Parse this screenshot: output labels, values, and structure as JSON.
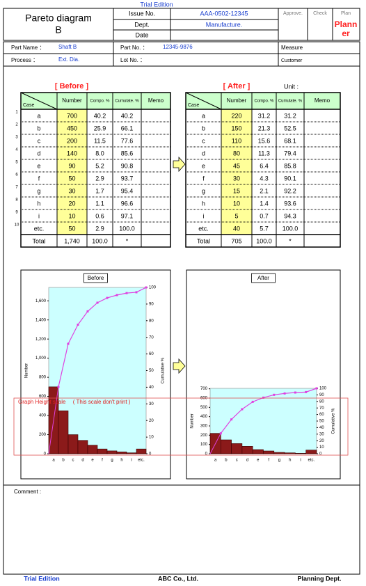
{
  "header": {
    "trial_edition": "Trial Edition",
    "title_line1": "Pareto diagram",
    "title_line2": "B",
    "issue_no_label": "Issue No.",
    "issue_no": "AAA-0502-12345",
    "dept_label": "Dept.",
    "dept": "Manufacture.",
    "date_label": "Date",
    "approve": "Approve.",
    "check": "Check",
    "plan": "Plan",
    "planner": "Planner"
  },
  "info": {
    "part_name_label": "Part Name ：",
    "part_name": "Shaft B",
    "part_no_label": "Part No. ：",
    "part_no": "12345-9876",
    "measure": "Measure",
    "process_label": "Process ：",
    "process": "Ext. Dia.",
    "lot_no_label": "Lot No. ：",
    "customer": "Customer"
  },
  "tables": {
    "row_numbers": [
      "1",
      "2",
      "3",
      "4",
      "5",
      "6",
      "7",
      "8",
      "9",
      "10"
    ],
    "unit_label": "Unit :",
    "before": {
      "title": "[ Before ]",
      "columns": [
        "Case",
        "Number",
        "Compo. %",
        "Cumulate. %",
        "Memo"
      ],
      "rows": [
        [
          "a",
          "700",
          "40.2",
          "40.2"
        ],
        [
          "b",
          "450",
          "25.9",
          "66.1"
        ],
        [
          "c",
          "200",
          "11.5",
          "77.6"
        ],
        [
          "d",
          "140",
          "8.0",
          "85.6"
        ],
        [
          "e",
          "90",
          "5.2",
          "90.8"
        ],
        [
          "f",
          "50",
          "2.9",
          "93.7"
        ],
        [
          "g",
          "30",
          "1.7",
          "95.4"
        ],
        [
          "h",
          "20",
          "1.1",
          "96.6"
        ],
        [
          "i",
          "10",
          "0.6",
          "97.1"
        ],
        [
          "etc.",
          "50",
          "2.9",
          "100.0"
        ]
      ],
      "total": [
        "Total",
        "1,740",
        "100.0",
        "*"
      ]
    },
    "after": {
      "title": "[ After ]",
      "columns": [
        "Case",
        "Number",
        "Compo. %",
        "Cumulate. %",
        "Memo"
      ],
      "rows": [
        [
          "a",
          "220",
          "31.2",
          "31.2"
        ],
        [
          "b",
          "150",
          "21.3",
          "52.5"
        ],
        [
          "c",
          "110",
          "15.6",
          "68.1"
        ],
        [
          "d",
          "80",
          "11.3",
          "79.4"
        ],
        [
          "e",
          "45",
          "6.4",
          "85.8"
        ],
        [
          "f",
          "30",
          "4.3",
          "90.1"
        ],
        [
          "g",
          "15",
          "2.1",
          "92.2"
        ],
        [
          "h",
          "10",
          "1.4",
          "93.6"
        ],
        [
          "i",
          "5",
          "0.7",
          "94.3"
        ],
        [
          "etc.",
          "40",
          "5.7",
          "100.0"
        ]
      ],
      "total": [
        "Total",
        "705",
        "100.0",
        "*"
      ]
    }
  },
  "chart_data": [
    {
      "type": "pareto",
      "title": "Before",
      "y_label": "Number",
      "y2_label": "Cumulative %",
      "categories": [
        "a",
        "b",
        "c",
        "d",
        "e",
        "f",
        "g",
        "h",
        "i",
        "etc."
      ],
      "values": [
        700,
        450,
        200,
        140,
        90,
        50,
        30,
        20,
        10,
        50
      ],
      "cumulative": [
        40.2,
        66.1,
        77.6,
        85.6,
        90.8,
        93.7,
        95.4,
        96.6,
        97.1,
        100
      ],
      "color": "#8b1a1a",
      "line_color": "#e040e0",
      "ylim": [
        0,
        1740
      ],
      "yticks": [
        0,
        200,
        400,
        600,
        800,
        {
          "value": 1000,
          "label": "1,000"
        },
        {
          "value": 1200,
          "label": "1,200"
        },
        {
          "value": 1400,
          "label": "1,400"
        },
        {
          "value": 1600,
          "label": "1,600"
        }
      ],
      "y2lim": [
        0,
        100
      ],
      "y2ticks": [
        0,
        10,
        20,
        30,
        40,
        50,
        60,
        70,
        80,
        90,
        100
      ]
    },
    {
      "type": "pareto",
      "title": "After",
      "y_label": "Number",
      "y2_label": "Cumulative %",
      "categories": [
        "a",
        "b",
        "c",
        "d",
        "e",
        "f",
        "g",
        "h",
        "i",
        "etc."
      ],
      "values": [
        220,
        150,
        110,
        80,
        45,
        30,
        15,
        10,
        5,
        40
      ],
      "cumulative": [
        31.2,
        52.5,
        68.1,
        79.4,
        85.8,
        90.1,
        92.2,
        93.6,
        94.3,
        100
      ],
      "color": "#8b1a1a",
      "line_color": "#e040e0",
      "ylim": [
        0,
        705
      ],
      "yticks": [
        0,
        100,
        200,
        300,
        400,
        500,
        600,
        700
      ],
      "y2lim": [
        0,
        100
      ],
      "y2ticks": [
        0,
        10,
        20,
        30,
        40,
        50,
        60,
        70,
        80,
        90,
        100
      ]
    }
  ],
  "overlay": {
    "scale_note": "Graph Height scale　 ( This scale don't print )"
  },
  "comment": {
    "label": "Comment :"
  },
  "footer": {
    "trial_edition": "Trial Edition",
    "company": "ABC Co., Ltd.",
    "dept": "Planning Dept."
  }
}
